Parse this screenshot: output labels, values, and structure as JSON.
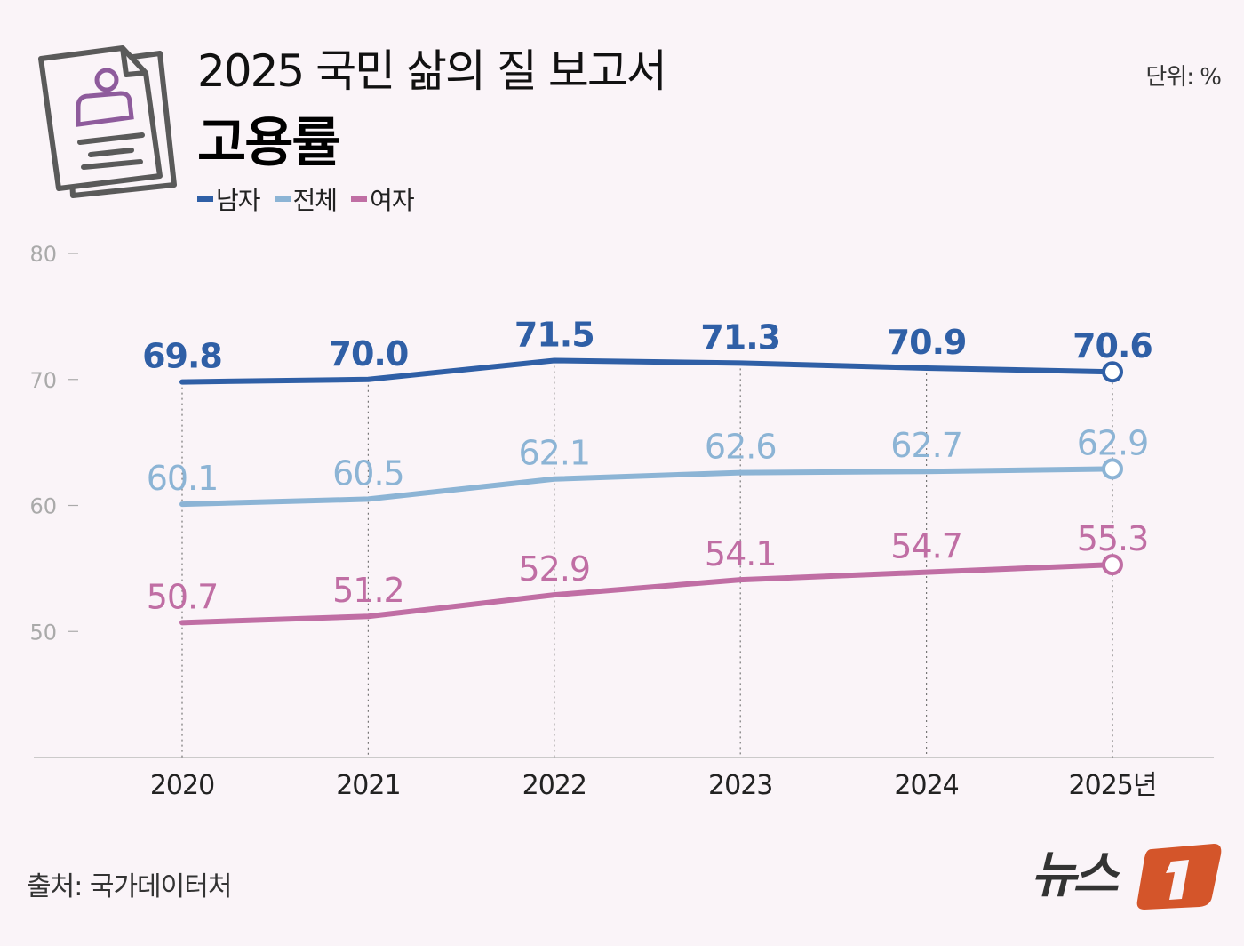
{
  "header": {
    "title": "2025 국민 삶의 질 보고서",
    "subtitle": "고용률",
    "unit": "단위: %",
    "icon": "document-person-icon"
  },
  "footer": {
    "source": "출처: 국가데이터처",
    "logo": "뉴스1"
  },
  "chart_data": {
    "type": "line",
    "title": "고용률",
    "categories": [
      "2020",
      "2021",
      "2022",
      "2023",
      "2024",
      "2025년"
    ],
    "ylim": [
      40,
      80
    ],
    "yticks": [
      50,
      60,
      70,
      80
    ],
    "grid": "vertical dotted lines at each category",
    "legend_position": "top-left",
    "series": [
      {
        "name": "남자",
        "color": "#2f5fa6",
        "values": [
          69.8,
          70.0,
          71.5,
          71.3,
          70.9,
          70.6
        ],
        "labels": [
          "69.8",
          "70.0",
          "71.5",
          "71.3",
          "70.9",
          "70.6"
        ]
      },
      {
        "name": "전체",
        "color": "#8cb4d5",
        "values": [
          60.1,
          60.5,
          62.1,
          62.6,
          62.7,
          62.9
        ],
        "labels": [
          "60.1",
          "60.5",
          "62.1",
          "62.6",
          "62.7",
          "62.9"
        ]
      },
      {
        "name": "여자",
        "color": "#c06ea4",
        "values": [
          50.7,
          51.2,
          52.9,
          54.1,
          54.7,
          55.3
        ],
        "labels": [
          "50.7",
          "51.2",
          "52.9",
          "54.1",
          "54.7",
          "55.3"
        ]
      }
    ]
  }
}
